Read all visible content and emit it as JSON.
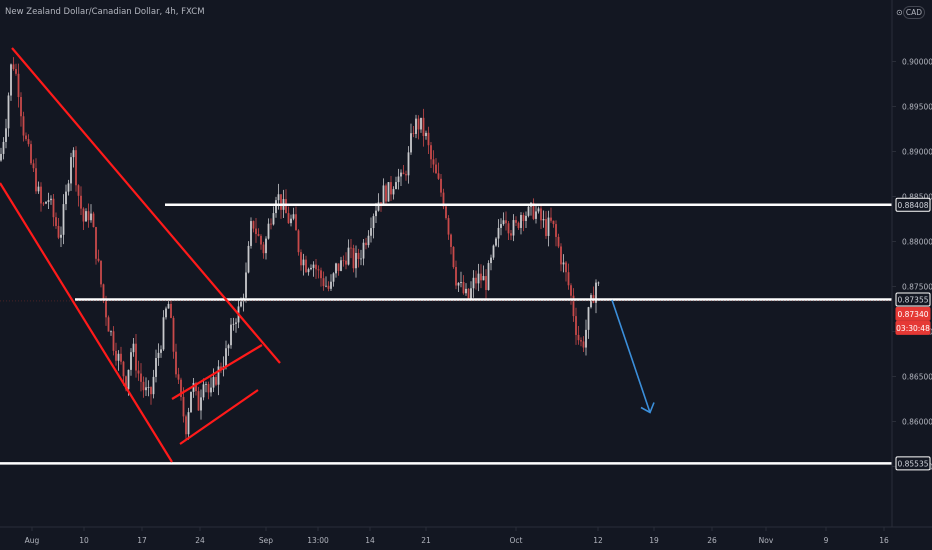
{
  "header": {
    "title": "New Zealand Dollar/Canadian Dollar, 4h, FXCM",
    "currency": "CAD"
  },
  "colors": {
    "background": "#131722",
    "axis_line": "#2a2e39",
    "text": "#b2b5be",
    "candle_up": "#c8c9cc",
    "candle_down": "#c94a4a",
    "channel": "#ff1a1a",
    "level_line": "#ffffff",
    "arrow": "#3b8fdb",
    "price_tag_current": "#e53935"
  },
  "price_axis": {
    "ticks": [
      "0.90000",
      "0.89500",
      "0.89000",
      "0.88500",
      "0.88000",
      "0.87500",
      "0.87000",
      "0.86500",
      "0.86000",
      "0.85500"
    ],
    "level_tags": [
      "0.88408",
      "0.87355",
      "0.85535"
    ],
    "current_price": "0.87340",
    "countdown": "03:30:48"
  },
  "time_axis": {
    "labels": [
      "Aug",
      "10",
      "17",
      "24",
      "Sep",
      "13:00",
      "14",
      "21",
      "Oct",
      "12",
      "19",
      "26",
      "Nov",
      "9",
      "16"
    ]
  },
  "chart_data": {
    "type": "candlestick",
    "title": "New Zealand Dollar/Canadian Dollar, 4h, FXCM",
    "ylim": [
      0.8545,
      0.9045
    ],
    "y_ticks": [
      0.9,
      0.895,
      0.89,
      0.885,
      0.88,
      0.875,
      0.87,
      0.865,
      0.86,
      0.855
    ],
    "x_ticks": [
      "Aug",
      "10",
      "17",
      "24",
      "Sep",
      "13:00",
      "14",
      "21",
      "Oct",
      "12",
      "19",
      "26",
      "Nov",
      "9",
      "16"
    ],
    "horizontal_levels": [
      0.88408,
      0.87355,
      0.85535
    ],
    "current_price": 0.8734,
    "close_path": [
      [
        0,
        0.889
      ],
      [
        6,
        0.8935
      ],
      [
        12,
        0.9005
      ],
      [
        18,
        0.8975
      ],
      [
        24,
        0.892
      ],
      [
        30,
        0.889
      ],
      [
        36,
        0.8865
      ],
      [
        42,
        0.8835
      ],
      [
        48,
        0.885
      ],
      [
        54,
        0.8825
      ],
      [
        60,
        0.8805
      ],
      [
        66,
        0.885
      ],
      [
        72,
        0.891
      ],
      [
        78,
        0.8855
      ],
      [
        84,
        0.882
      ],
      [
        90,
        0.8835
      ],
      [
        96,
        0.879
      ],
      [
        102,
        0.8745
      ],
      [
        108,
        0.871
      ],
      [
        114,
        0.8685
      ],
      [
        120,
        0.8665
      ],
      [
        126,
        0.8645
      ],
      [
        132,
        0.8685
      ],
      [
        138,
        0.8655
      ],
      [
        144,
        0.8635
      ],
      [
        150,
        0.8625
      ],
      [
        156,
        0.8665
      ],
      [
        162,
        0.8695
      ],
      [
        168,
        0.8735
      ],
      [
        174,
        0.8675
      ],
      [
        180,
        0.8625
      ],
      [
        186,
        0.8595
      ],
      [
        192,
        0.8645
      ],
      [
        198,
        0.8615
      ],
      [
        204,
        0.8655
      ],
      [
        210,
        0.8625
      ],
      [
        216,
        0.865
      ],
      [
        222,
        0.8665
      ],
      [
        228,
        0.868
      ],
      [
        234,
        0.8715
      ],
      [
        240,
        0.8725
      ],
      [
        246,
        0.876
      ],
      [
        252,
        0.8825
      ],
      [
        258,
        0.8805
      ],
      [
        264,
        0.879
      ],
      [
        270,
        0.8825
      ],
      [
        276,
        0.8855
      ],
      [
        282,
        0.884
      ],
      [
        288,
        0.8825
      ],
      [
        294,
        0.882
      ],
      [
        300,
        0.8785
      ],
      [
        306,
        0.8775
      ],
      [
        312,
        0.878
      ],
      [
        318,
        0.8765
      ],
      [
        324,
        0.8755
      ],
      [
        330,
        0.8745
      ],
      [
        336,
        0.877
      ],
      [
        342,
        0.8775
      ],
      [
        348,
        0.879
      ],
      [
        354,
        0.8775
      ],
      [
        360,
        0.8785
      ],
      [
        366,
        0.8805
      ],
      [
        372,
        0.883
      ],
      [
        378,
        0.8845
      ],
      [
        384,
        0.8855
      ],
      [
        390,
        0.8855
      ],
      [
        396,
        0.8875
      ],
      [
        402,
        0.8865
      ],
      [
        408,
        0.889
      ],
      [
        414,
        0.893
      ],
      [
        420,
        0.893
      ],
      [
        426,
        0.8915
      ],
      [
        432,
        0.8885
      ],
      [
        438,
        0.8865
      ],
      [
        444,
        0.8845
      ],
      [
        450,
        0.8805
      ],
      [
        456,
        0.876
      ],
      [
        462,
        0.8745
      ],
      [
        468,
        0.8735
      ],
      [
        474,
        0.8755
      ],
      [
        480,
        0.876
      ],
      [
        486,
        0.8755
      ],
      [
        492,
        0.878
      ],
      [
        498,
        0.8805
      ],
      [
        504,
        0.8835
      ],
      [
        510,
        0.8815
      ],
      [
        516,
        0.8815
      ],
      [
        522,
        0.8835
      ],
      [
        528,
        0.883
      ],
      [
        534,
        0.8835
      ],
      [
        540,
        0.8825
      ],
      [
        546,
        0.8815
      ],
      [
        552,
        0.882
      ],
      [
        558,
        0.8795
      ],
      [
        564,
        0.877
      ],
      [
        570,
        0.8745
      ],
      [
        576,
        0.8705
      ],
      [
        580,
        0.8685
      ],
      [
        584,
        0.869
      ],
      [
        588,
        0.8715
      ],
      [
        592,
        0.8735
      ],
      [
        596,
        0.8755
      ],
      [
        600,
        0.8745
      ]
    ],
    "drawings": {
      "channel_upper": [
        [
          12,
          0.9015
        ],
        [
          280,
          0.8665
        ]
      ],
      "channel_lower": [
        [
          0,
          0.8865
        ],
        [
          172,
          0.8555
        ]
      ],
      "flag_upper": [
        [
          172,
          0.8625
        ],
        [
          262,
          0.8685
        ]
      ],
      "flag_lower": [
        [
          180,
          0.8575
        ],
        [
          258,
          0.8635
        ]
      ],
      "projection_arrow": [
        [
          612,
          0.8735
        ],
        [
          650,
          0.861
        ]
      ]
    }
  }
}
